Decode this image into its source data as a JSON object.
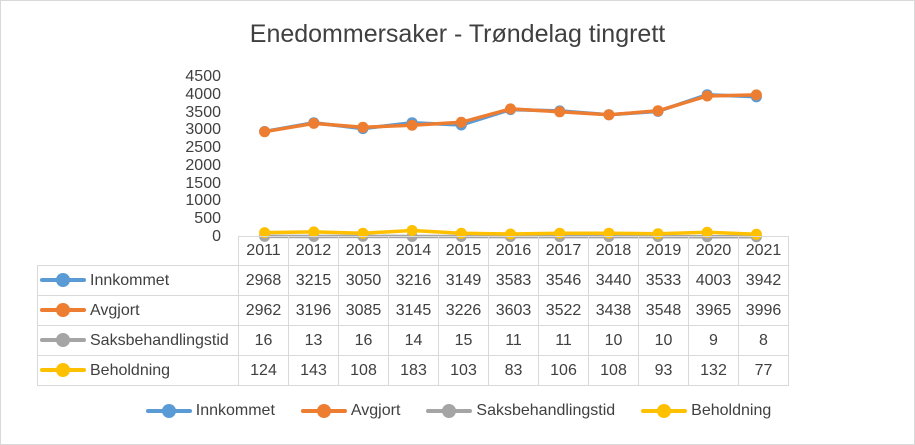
{
  "chart_data": {
    "type": "line",
    "title": "Enedommersaker  - Trøndelag tingrett",
    "categories": [
      "2011",
      "2012",
      "2013",
      "2014",
      "2015",
      "2016",
      "2017",
      "2018",
      "2019",
      "2020",
      "2021"
    ],
    "series": [
      {
        "name": "Innkommet",
        "color": "#5b9bd5",
        "values": [
          2968,
          3215,
          3050,
          3216,
          3149,
          3583,
          3546,
          3440,
          3533,
          4003,
          3942
        ]
      },
      {
        "name": "Avgjort",
        "color": "#ed7d31",
        "values": [
          2962,
          3196,
          3085,
          3145,
          3226,
          3603,
          3522,
          3438,
          3548,
          3965,
          3996
        ]
      },
      {
        "name": "Saksbehandlingstid",
        "color": "#a5a5a5",
        "values": [
          16,
          13,
          16,
          14,
          15,
          11,
          11,
          10,
          10,
          9,
          8
        ]
      },
      {
        "name": "Beholdning",
        "color": "#ffc000",
        "values": [
          124,
          143,
          108,
          183,
          103,
          83,
          106,
          108,
          93,
          132,
          77
        ]
      }
    ],
    "ylim": [
      0,
      4500
    ],
    "yticks": [
      "0",
      "500",
      "1000",
      "1500",
      "2000",
      "2500",
      "3000",
      "3500",
      "4000",
      "4500"
    ],
    "grid": false,
    "legend": "bottom",
    "data_table": true
  }
}
